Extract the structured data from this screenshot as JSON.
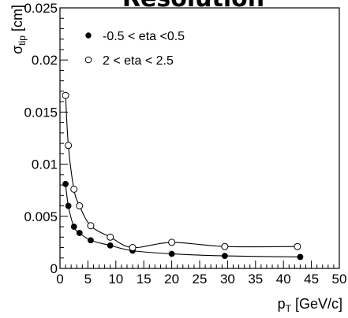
{
  "chart_data": {
    "type": "scatter",
    "title": "Resolution",
    "xlabel": {
      "main": "p",
      "sub": "T",
      "unit": " [GeV/c]"
    },
    "ylabel": {
      "main": "σ",
      "sub": "tip",
      "unit": " [cm]"
    },
    "xlim": [
      0,
      50
    ],
    "ylim": [
      0,
      0.025
    ],
    "x_ticks": [
      0,
      5,
      10,
      15,
      20,
      25,
      30,
      35,
      40,
      45,
      50
    ],
    "x_tick_labels": [
      "0",
      "5",
      "10",
      "15",
      "20",
      "25",
      "30",
      "35",
      "40",
      "45",
      "50"
    ],
    "y_ticks": [
      0,
      0.005,
      0.01,
      0.015,
      0.02,
      0.025
    ],
    "y_tick_labels": [
      "0",
      "0.005",
      "0.01",
      "0.015",
      "0.02",
      "0.025"
    ],
    "grid": false,
    "legend_position": "top-left",
    "series": [
      {
        "name": "-0.5 < eta <0.5",
        "marker": "filled-circle",
        "x": [
          1.0,
          1.5,
          2.5,
          3.5,
          5.5,
          9.0,
          13.0,
          20.0,
          29.5,
          43.0
        ],
        "y": [
          0.0081,
          0.006,
          0.004,
          0.0034,
          0.0027,
          0.0022,
          0.0017,
          0.0014,
          0.0012,
          0.0011
        ]
      },
      {
        "name": "2 < eta < 2.5",
        "marker": "open-circle",
        "x": [
          1.0,
          1.5,
          2.5,
          3.5,
          5.5,
          9.0,
          13.0,
          20.0,
          29.5,
          42.5
        ],
        "y": [
          0.0166,
          0.0118,
          0.0076,
          0.006,
          0.0041,
          0.003,
          0.002,
          0.0025,
          0.0021,
          0.0021
        ]
      }
    ]
  }
}
